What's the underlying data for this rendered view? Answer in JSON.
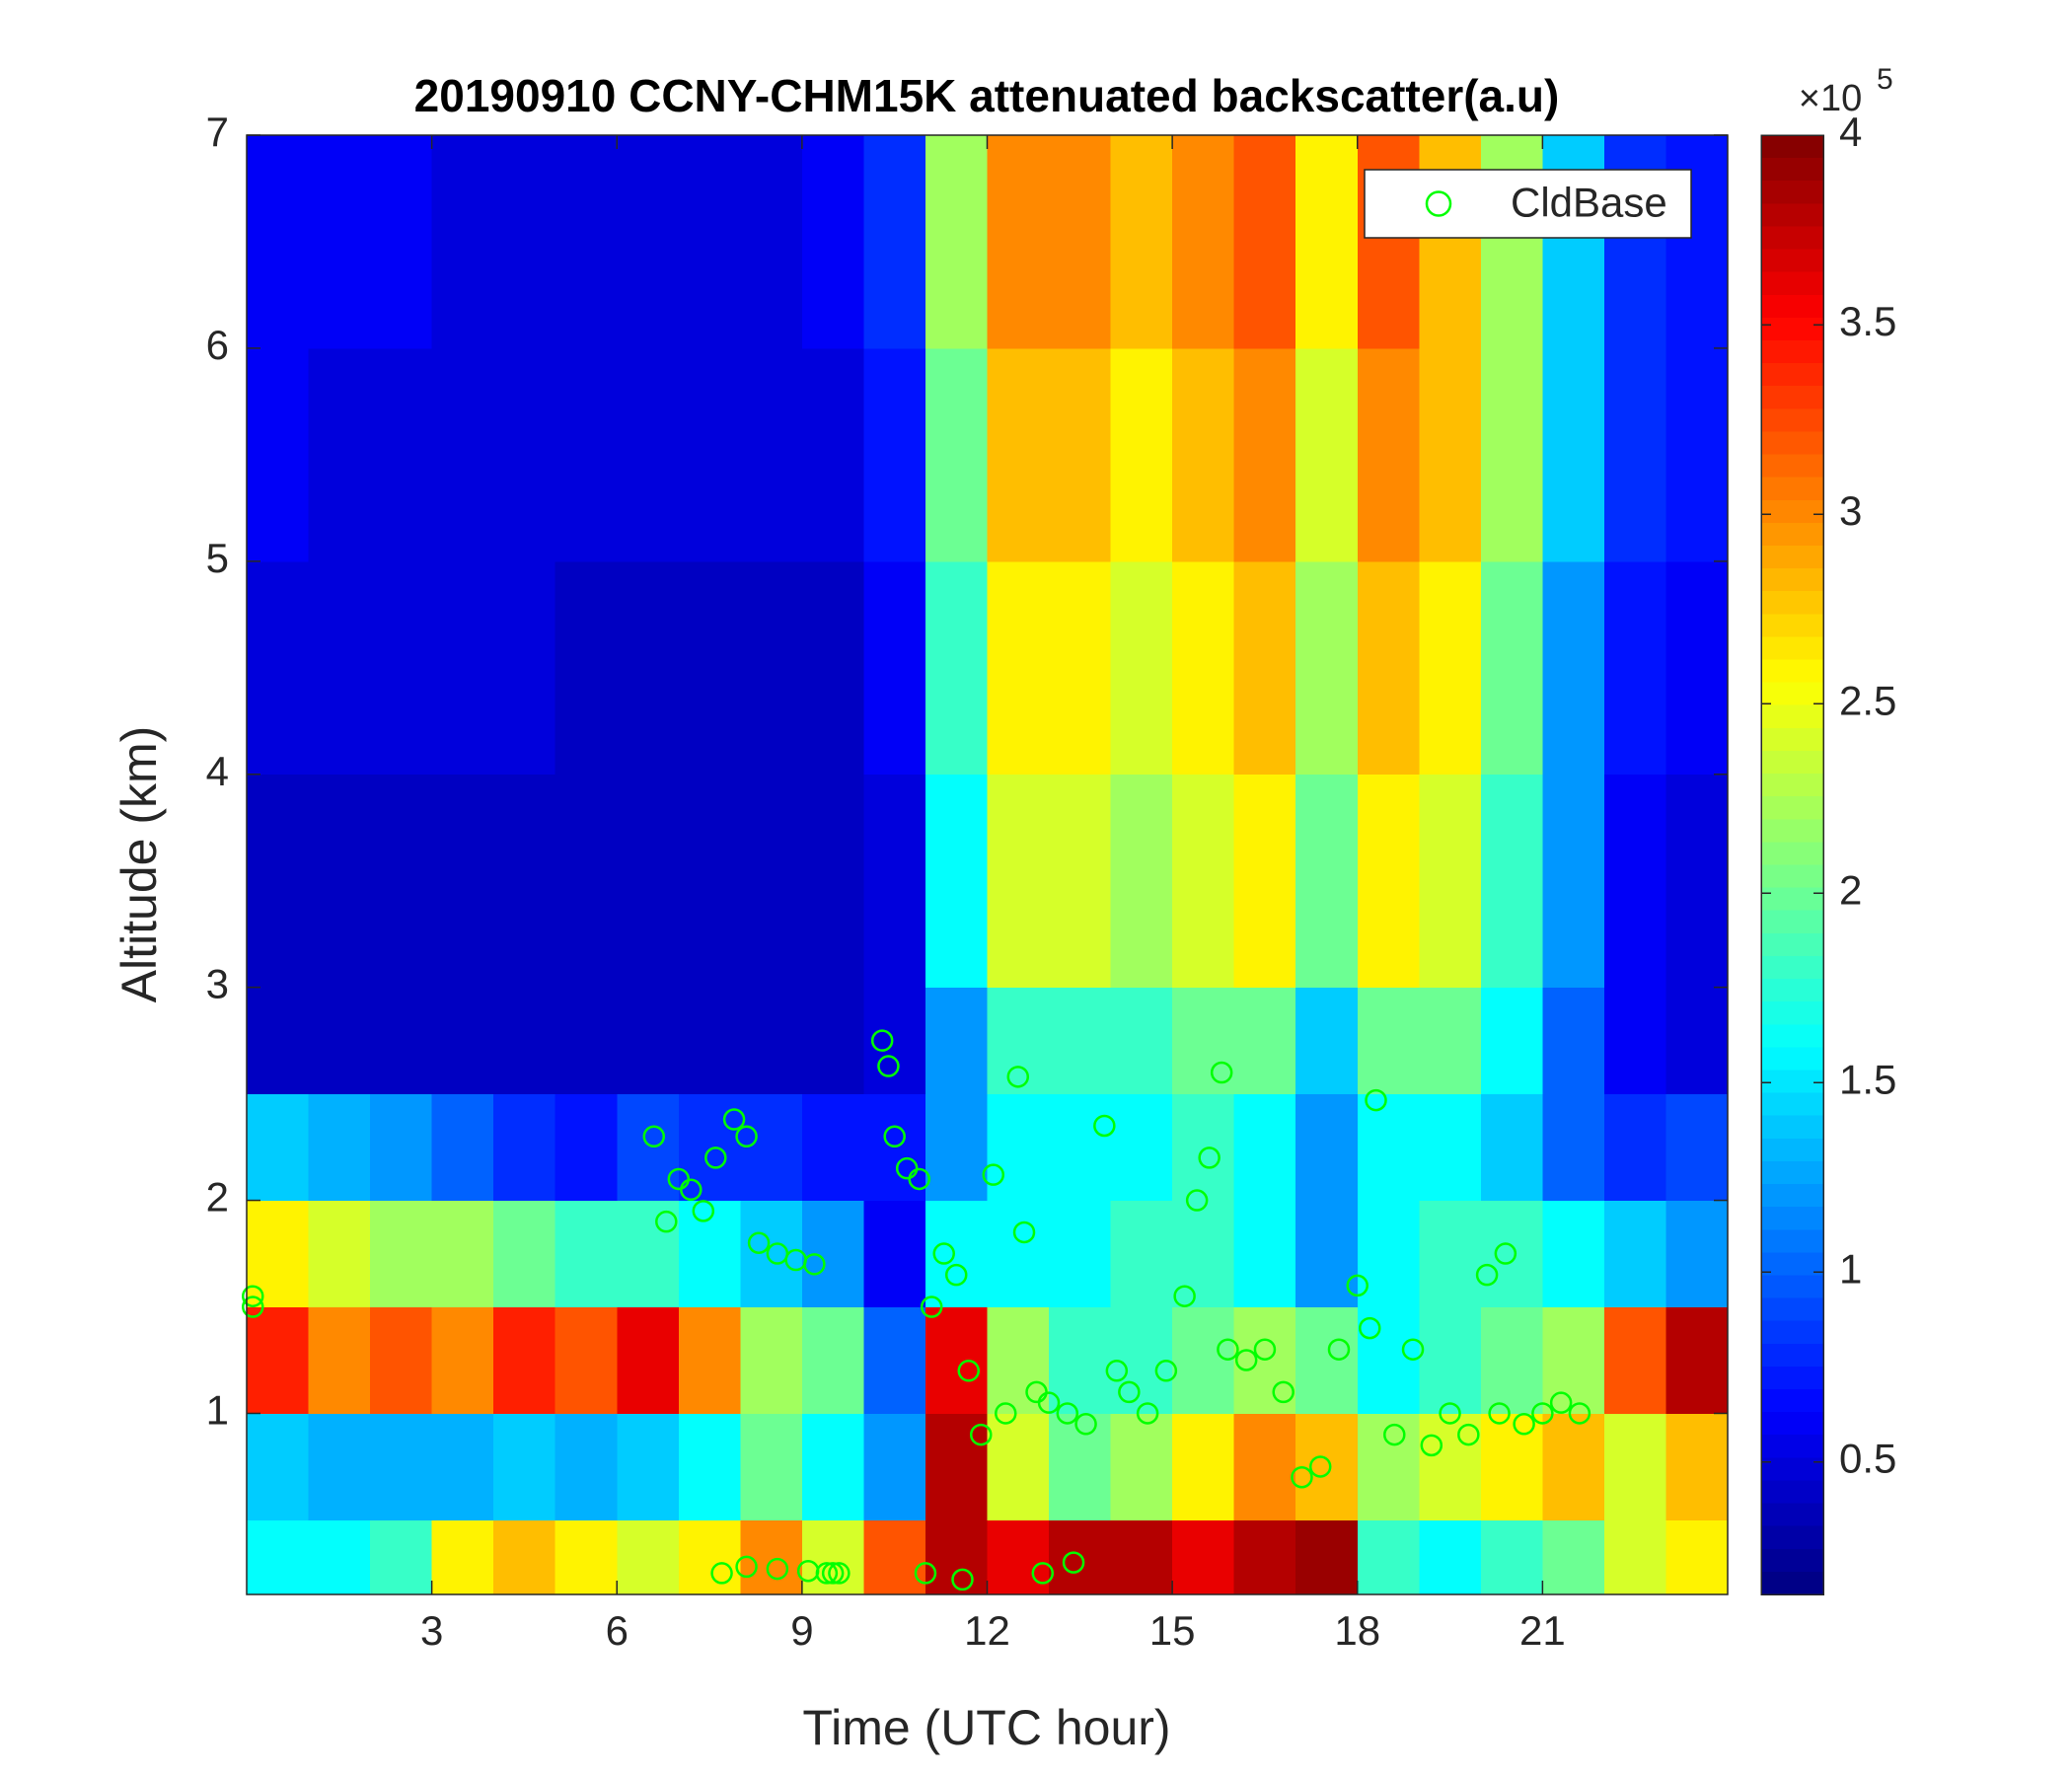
{
  "chart_data": {
    "type": "heatmap",
    "title": "20190910 CCNY-CHM15K attenuated backscatter(a.u)",
    "xlabel": "Time (UTC hour)",
    "ylabel": "Altitude (km)",
    "xlim": [
      0,
      24
    ],
    "xticks": [
      3,
      6,
      9,
      12,
      15,
      18,
      21
    ],
    "ylim": [
      0.15,
      7
    ],
    "yticks": [
      1,
      2,
      3,
      4,
      5,
      6,
      7
    ],
    "x_bins": [
      0,
      1,
      2,
      3,
      4,
      5,
      6,
      7,
      8,
      9,
      10,
      11,
      12,
      13,
      14,
      15,
      16,
      17,
      18,
      19,
      20,
      21,
      22,
      23,
      24
    ],
    "y_bins": [
      0.15,
      0.5,
      1,
      1.5,
      2,
      2.5,
      3,
      4,
      5,
      6,
      7
    ],
    "z": [
      [
        1.6,
        1.6,
        1.8,
        2.6,
        2.8,
        2.6,
        2.4,
        2.6,
        3.0,
        2.4,
        3.2,
        3.8,
        3.6,
        3.8,
        3.8,
        3.6,
        3.8,
        3.9,
        1.8,
        1.6,
        1.8,
        2.0,
        2.4,
        2.6
      ],
      [
        1.4,
        1.3,
        1.3,
        1.3,
        1.4,
        1.3,
        1.4,
        1.6,
        2.0,
        1.6,
        1.2,
        3.8,
        2.4,
        2.0,
        2.2,
        2.6,
        3.0,
        2.8,
        2.2,
        2.4,
        2.6,
        2.8,
        2.4,
        2.8
      ],
      [
        3.4,
        3.0,
        3.2,
        3.0,
        3.4,
        3.2,
        3.6,
        3.0,
        2.2,
        2.0,
        1.0,
        3.6,
        2.2,
        1.8,
        1.8,
        2.0,
        2.2,
        2.0,
        1.6,
        1.8,
        2.0,
        2.2,
        3.2,
        3.8
      ],
      [
        2.6,
        2.4,
        2.2,
        2.2,
        2.0,
        1.8,
        1.8,
        1.6,
        1.4,
        1.2,
        0.6,
        1.6,
        1.6,
        1.6,
        1.8,
        1.8,
        1.6,
        1.2,
        1.6,
        1.8,
        1.8,
        1.6,
        1.4,
        1.2
      ],
      [
        1.4,
        1.3,
        1.2,
        1.0,
        0.8,
        0.7,
        0.9,
        0.8,
        0.8,
        0.7,
        0.7,
        1.2,
        1.6,
        1.6,
        1.6,
        1.8,
        1.6,
        1.2,
        1.6,
        1.6,
        1.4,
        1.0,
        0.8,
        0.9
      ],
      [
        0.4,
        0.4,
        0.4,
        0.4,
        0.4,
        0.4,
        0.4,
        0.4,
        0.4,
        0.4,
        0.5,
        1.2,
        1.8,
        1.8,
        1.8,
        2.0,
        2.0,
        1.4,
        2.0,
        2.0,
        1.6,
        1.0,
        0.6,
        0.5
      ],
      [
        0.4,
        0.4,
        0.4,
        0.4,
        0.4,
        0.4,
        0.4,
        0.4,
        0.4,
        0.4,
        0.5,
        1.6,
        2.4,
        2.4,
        2.2,
        2.4,
        2.6,
        2.0,
        2.6,
        2.4,
        1.8,
        1.2,
        0.6,
        0.5
      ],
      [
        0.5,
        0.5,
        0.5,
        0.5,
        0.5,
        0.4,
        0.4,
        0.4,
        0.4,
        0.4,
        0.6,
        1.8,
        2.6,
        2.6,
        2.4,
        2.6,
        2.8,
        2.2,
        2.8,
        2.6,
        2.0,
        1.2,
        0.7,
        0.6
      ],
      [
        0.6,
        0.5,
        0.5,
        0.5,
        0.5,
        0.5,
        0.5,
        0.5,
        0.5,
        0.5,
        0.7,
        2.0,
        2.8,
        2.8,
        2.6,
        2.8,
        3.0,
        2.4,
        3.0,
        2.8,
        2.2,
        1.4,
        0.8,
        0.7
      ],
      [
        0.6,
        0.6,
        0.6,
        0.5,
        0.5,
        0.5,
        0.5,
        0.5,
        0.5,
        0.6,
        0.8,
        2.2,
        3.0,
        3.0,
        2.8,
        3.0,
        3.2,
        2.6,
        3.2,
        2.8,
        2.2,
        1.4,
        0.8,
        0.7
      ]
    ],
    "colormap": "jet",
    "clim": [
      0.15,
      4
    ],
    "cticks": [
      0.5,
      1,
      1.5,
      2,
      2.5,
      3,
      3.5,
      4
    ],
    "colorbar_scale": {
      "base": "×10",
      "exponent": 5
    },
    "legend": "upper right",
    "series": [
      {
        "name": "CldBase",
        "type": "scatter",
        "color": "#00ff00",
        "x": [
          0.1,
          0.1,
          6.6,
          6.8,
          7.0,
          7.2,
          7.4,
          7.6,
          7.9,
          8.1,
          8.3,
          8.6,
          8.9,
          9.2,
          9.4,
          9.6,
          10.3,
          10.4,
          10.5,
          10.7,
          10.9,
          11.1,
          11.3,
          11.5,
          11.7,
          11.9,
          12.1,
          12.3,
          12.5,
          12.6,
          12.8,
          13.0,
          13.3,
          13.6,
          13.9,
          14.1,
          14.3,
          14.6,
          14.9,
          15.2,
          15.4,
          15.6,
          15.8,
          15.9,
          16.2,
          16.5,
          16.8,
          17.1,
          17.4,
          17.7,
          18.0,
          18.2,
          18.3,
          18.6,
          18.9,
          19.2,
          19.5,
          19.8,
          20.1,
          20.3,
          20.4,
          20.7,
          21.0,
          21.3,
          21.6,
          7.7,
          8.1,
          8.6,
          9.1,
          9.5,
          11.0,
          11.6,
          12.9,
          13.4
        ],
        "values": [
          1.55,
          1.5,
          2.3,
          1.9,
          2.1,
          2.05,
          1.95,
          2.2,
          2.38,
          2.3,
          1.8,
          1.75,
          1.72,
          1.7,
          0.25,
          0.25,
          2.75,
          2.63,
          2.3,
          2.15,
          2.1,
          1.5,
          1.75,
          1.65,
          1.2,
          0.9,
          2.12,
          1.0,
          2.58,
          1.85,
          1.1,
          1.05,
          1.0,
          0.95,
          2.35,
          1.2,
          1.1,
          1.0,
          1.2,
          1.55,
          2.0,
          2.2,
          2.6,
          1.3,
          1.25,
          1.3,
          1.1,
          0.7,
          0.75,
          1.3,
          1.6,
          1.4,
          2.47,
          0.9,
          1.3,
          0.85,
          1.0,
          0.9,
          1.65,
          1.0,
          1.75,
          0.95,
          1.0,
          1.05,
          1.0,
          0.25,
          0.28,
          0.27,
          0.26,
          0.25,
          0.25,
          0.22,
          0.25,
          0.3
        ]
      }
    ]
  }
}
